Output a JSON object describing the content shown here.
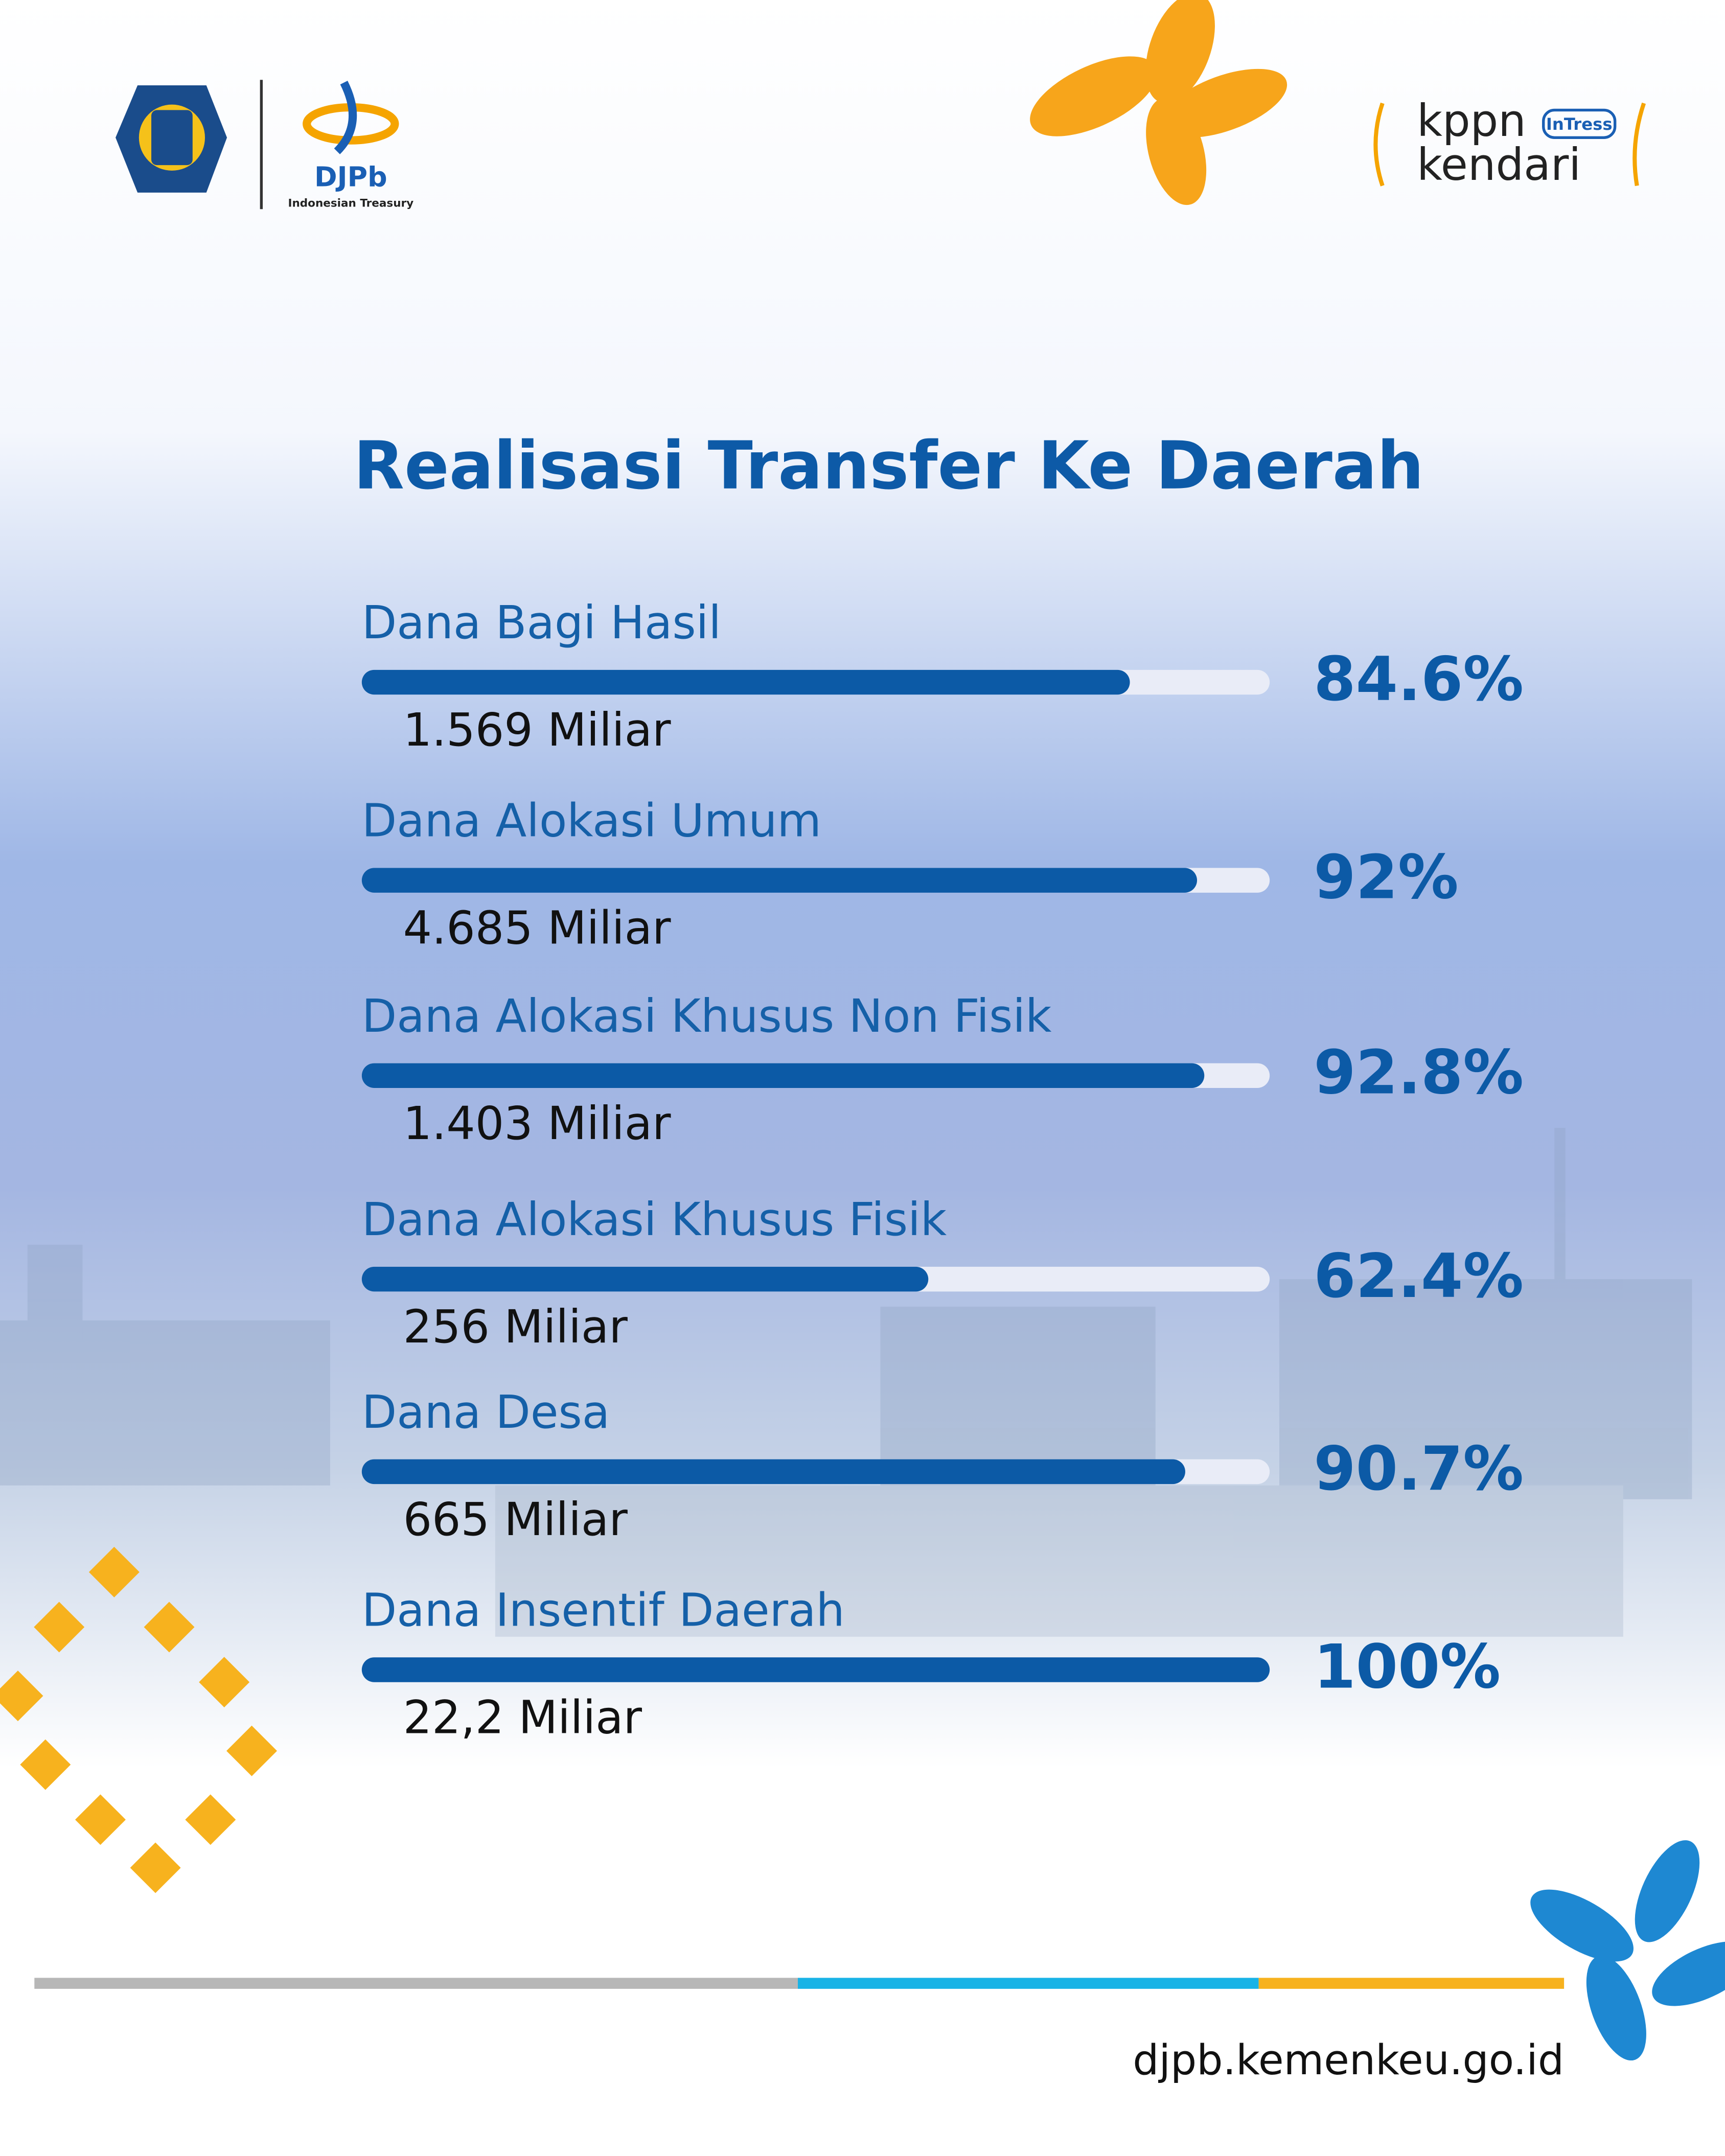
{
  "header": {
    "logo_text": "DJPb",
    "logo_subtext": "Indonesian Treasury",
    "brand_top": "kppn",
    "brand_badge": "InTress",
    "brand_bottom": "kendari"
  },
  "chart_data": {
    "type": "progress",
    "title": "Realisasi Transfer Ke Daerah",
    "categories": [
      "Dana Bagi Hasil",
      "Dana Alokasi Umum",
      "Dana Alokasi Khusus Non Fisik",
      "Dana Alokasi Khusus Fisik",
      "Dana Desa",
      "Dana Insentif Daerah"
    ],
    "values": [
      84.6,
      92,
      92.8,
      62.4,
      90.7,
      100
    ],
    "value_labels": [
      "84.6%",
      "92%",
      "92.8%",
      "62.4%",
      "90.7%",
      "100%"
    ],
    "amount_labels": [
      "1.569 Miliar",
      "4.685 Miliar",
      "1.403 Miliar",
      "256 Miliar",
      "665 Miliar",
      "22,2 Miliar"
    ],
    "xlim": [
      0,
      100
    ],
    "color": "#0c5aa6",
    "track_color": "#e9ecf7"
  },
  "footer": {
    "url": "djpb.kemenkeu.go.id"
  }
}
